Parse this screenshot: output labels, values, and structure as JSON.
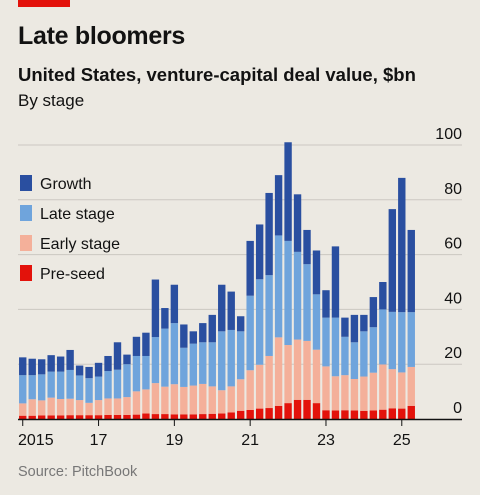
{
  "header": {
    "accent_color": "#e3120b",
    "title": "Late bloomers",
    "subtitle": "United States, venture-capital deal value, $bn",
    "subsubtitle": "By stage"
  },
  "footer": {
    "source": "Source: PitchBook"
  },
  "chart_data": {
    "type": "bar",
    "stacked": true,
    "frequency": "quarterly",
    "x_start": "2015 Q1",
    "categories": [
      "2015 Q1",
      "2015 Q2",
      "2015 Q3",
      "2015 Q4",
      "2016 Q1",
      "2016 Q2",
      "2016 Q3",
      "2016 Q4",
      "2017 Q1",
      "2017 Q2",
      "2017 Q3",
      "2017 Q4",
      "2018 Q1",
      "2018 Q2",
      "2018 Q3",
      "2018 Q4",
      "2019 Q1",
      "2019 Q2",
      "2019 Q3",
      "2019 Q4",
      "2020 Q1",
      "2020 Q2",
      "2020 Q3",
      "2020 Q4",
      "2021 Q1",
      "2021 Q2",
      "2021 Q3",
      "2021 Q4",
      "2022 Q1",
      "2022 Q2",
      "2022 Q3",
      "2022 Q4",
      "2023 Q1",
      "2023 Q2",
      "2023 Q3",
      "2023 Q4",
      "2024 Q1",
      "2024 Q2",
      "2024 Q3",
      "2024 Q4",
      "2025 Q1",
      "2025 Q2"
    ],
    "x_tick_labels": [
      {
        "label": "2015",
        "index": 0
      },
      {
        "label": "17",
        "index": 8
      },
      {
        "label": "19",
        "index": 16
      },
      {
        "label": "21",
        "index": 24
      },
      {
        "label": "23",
        "index": 32
      },
      {
        "label": "25",
        "index": 40
      }
    ],
    "ylim": [
      0,
      100
    ],
    "yticks": [
      0,
      20,
      40,
      60,
      80,
      100
    ],
    "y_axis_side": "right",
    "grid": true,
    "legend_position": "top-left",
    "series": [
      {
        "name": "Pre-seed",
        "color": "#e3120b",
        "values": [
          1.2,
          1.2,
          1.3,
          1.3,
          1.3,
          1.4,
          1.4,
          1.4,
          1.4,
          1.5,
          1.5,
          1.5,
          1.6,
          2.0,
          1.8,
          1.8,
          1.7,
          1.7,
          1.7,
          1.8,
          1.9,
          2.0,
          2.4,
          3.0,
          3.3,
          3.8,
          4.0,
          4.8,
          5.8,
          7.0,
          7.0,
          5.8,
          3.2,
          3.1,
          3.2,
          3.1,
          3.0,
          3.1,
          3.4,
          3.9,
          3.8,
          4.8
        ]
      },
      {
        "name": "Early stage",
        "color": "#f4b09a",
        "values": [
          4.5,
          6.0,
          5.5,
          6.5,
          6.0,
          6.0,
          5.5,
          4.5,
          5.5,
          6.0,
          6.0,
          6.5,
          8.5,
          8.8,
          11.3,
          10.0,
          11.0,
          10.0,
          10.5,
          11.0,
          10.0,
          8.5,
          9.5,
          11.5,
          14.5,
          16.0,
          19.0,
          25.0,
          21.2,
          22.0,
          21.5,
          19.5,
          16.0,
          12.5,
          12.8,
          11.5,
          12.5,
          13.8,
          16.5,
          14.3,
          13.2,
          14.2
        ]
      },
      {
        "name": "Late stage",
        "color": "#6fa4dc",
        "values": [
          10.3,
          8.8,
          9.5,
          9.5,
          10.0,
          10.5,
          9.0,
          9.0,
          8.6,
          10.0,
          10.5,
          12.0,
          12.9,
          12.2,
          16.8,
          21.2,
          22.3,
          14.3,
          15.3,
          15.2,
          16.1,
          21.5,
          20.6,
          17.5,
          27.2,
          31.2,
          29.5,
          37.2,
          38.0,
          32.0,
          28.0,
          20.2,
          17.8,
          21.4,
          14.0,
          13.4,
          16.5,
          16.6,
          20.1,
          20.9,
          22.0,
          20.0
        ]
      },
      {
        "name": "Growth",
        "color": "#2a4fa0",
        "values": [
          6.5,
          6.0,
          5.5,
          6.0,
          5.5,
          7.3,
          3.6,
          4.1,
          5.0,
          5.5,
          10.0,
          3.5,
          7.0,
          8.5,
          21.0,
          7.5,
          14.0,
          8.5,
          4.5,
          7.0,
          10.0,
          17.0,
          14.0,
          5.5,
          20.0,
          20.0,
          30.0,
          22.0,
          36.0,
          21.0,
          12.5,
          16.0,
          10.0,
          26.0,
          7.0,
          10.0,
          6.0,
          11.0,
          10.0,
          37.5,
          49.0,
          30.0
        ]
      }
    ]
  }
}
